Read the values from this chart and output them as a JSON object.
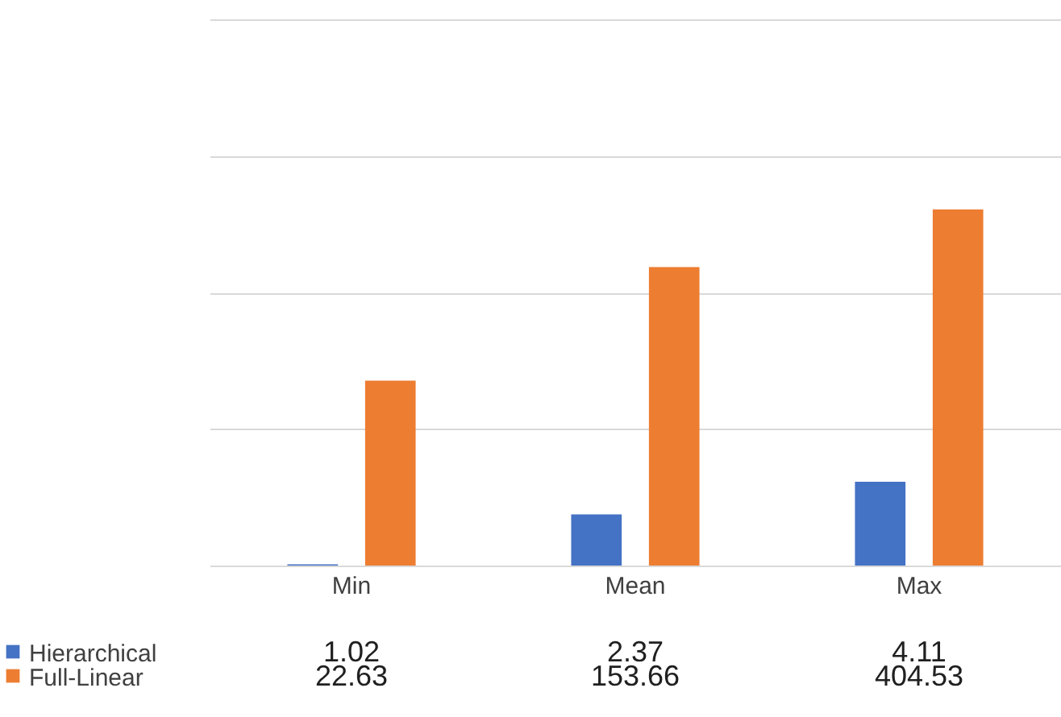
{
  "chart_data": {
    "type": "bar",
    "categories": [
      "Min",
      "Mean",
      "Max"
    ],
    "series": [
      {
        "name": "Hierarchical",
        "color": "#4472c4",
        "values": [
          1.02,
          2.37,
          4.11
        ]
      },
      {
        "name": "Full-Linear",
        "color": "#ed7d31",
        "values": [
          22.63,
          153.66,
          404.53
        ]
      }
    ],
    "log": true,
    "ylim": [
      1,
      10000
    ],
    "yticks": [
      {
        "value": 1,
        "label": null
      },
      {
        "value": 10,
        "label": null
      },
      {
        "value": 100,
        "label": null
      },
      {
        "value": 1000,
        "label": null
      },
      {
        "value": 10000,
        "label": null
      }
    ],
    "grid": true,
    "data_labels": true,
    "legend": "bottom"
  }
}
